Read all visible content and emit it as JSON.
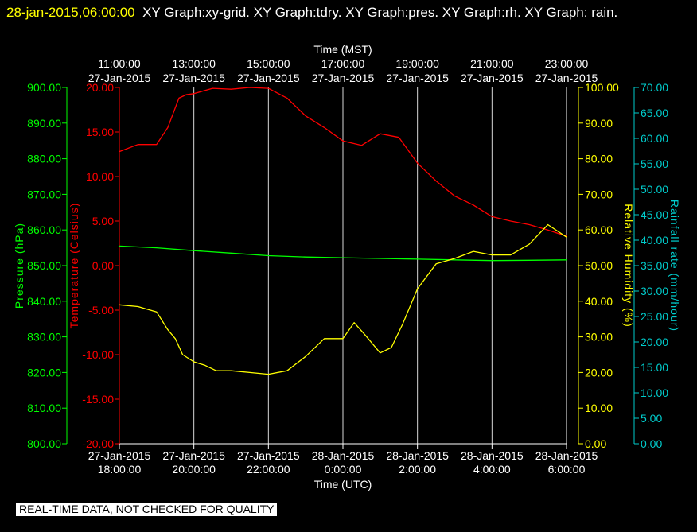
{
  "header": {
    "timestamp": "28-jan-2015,06:00:00",
    "graphs_text": "XY Graph:xy-grid.  XY Graph:tdry.  XY Graph:pres.  XY Graph:rh.  XY Graph: rain."
  },
  "notice": "REAL-TIME DATA, NOT CHECKED FOR QUALITY",
  "colors": {
    "pressure": "#00ff00",
    "temperature": "#ff0000",
    "humidity": "#ffff00",
    "rain": "#00cccc",
    "grid": "#ffffff",
    "notice_bg": "#ffffff"
  },
  "chart_data": {
    "type": "line",
    "title": "",
    "grid": true,
    "x_top": {
      "label": "Time (MST)",
      "ticks": [
        {
          "time": "11:00:00",
          "date": "27-Jan-2015"
        },
        {
          "time": "13:00:00",
          "date": "27-Jan-2015"
        },
        {
          "time": "15:00:00",
          "date": "27-Jan-2015"
        },
        {
          "time": "17:00:00",
          "date": "27-Jan-2015"
        },
        {
          "time": "19:00:00",
          "date": "27-Jan-2015"
        },
        {
          "time": "21:00:00",
          "date": "27-Jan-2015"
        },
        {
          "time": "23:00:00",
          "date": "27-Jan-2015"
        }
      ]
    },
    "x_bottom": {
      "label": "Time (UTC)",
      "range": [
        "27-Jan-2015 18:00:00",
        "28-Jan-2015 06:00:00"
      ],
      "ticks": [
        {
          "date": "27-Jan-2015",
          "time": "18:00:00"
        },
        {
          "date": "27-Jan-2015",
          "time": "20:00:00"
        },
        {
          "date": "27-Jan-2015",
          "time": "22:00:00"
        },
        {
          "date": "28-Jan-2015",
          "time": "0:00:00"
        },
        {
          "date": "28-Jan-2015",
          "time": "2:00:00"
        },
        {
          "date": "28-Jan-2015",
          "time": "4:00:00"
        },
        {
          "date": "28-Jan-2015",
          "time": "6:00:00"
        }
      ]
    },
    "axes": {
      "pressure": {
        "label": "Pressure (hPa)",
        "range": [
          800,
          900
        ],
        "ticks": [
          "800.00",
          "810.00",
          "820.00",
          "830.00",
          "840.00",
          "850.00",
          "860.00",
          "870.00",
          "880.00",
          "890.00",
          "900.00"
        ]
      },
      "temperature": {
        "label": "Temperature (Celsius)",
        "range": [
          -20,
          20
        ],
        "ticks": [
          "-20.00",
          "-15.00",
          "-10.00",
          "-5.00",
          "0.00",
          "5.00",
          "10.00",
          "15.00",
          "20.00"
        ]
      },
      "humidity": {
        "label": "Relative Humidity (%)",
        "range": [
          0,
          100
        ],
        "ticks": [
          "0.00",
          "10.00",
          "20.00",
          "30.00",
          "40.00",
          "50.00",
          "60.00",
          "70.00",
          "80.00",
          "90.00",
          "100.00"
        ]
      },
      "rain": {
        "label": "Rainfall rate (mm/hour)",
        "range": [
          0,
          70
        ],
        "ticks": [
          "0.00",
          "5.00",
          "10.00",
          "15.00",
          "20.00",
          "25.00",
          "30.00",
          "35.00",
          "40.00",
          "45.00",
          "50.00",
          "55.00",
          "60.00",
          "65.00",
          "70.00"
        ]
      }
    },
    "series": [
      {
        "key": "temperature",
        "axis": "temperature",
        "x": [
          0,
          0.5,
          1,
          1.3,
          1.6,
          1.8,
          2,
          2.5,
          3,
          3.5,
          4,
          4.5,
          5,
          5.5,
          6,
          6.5,
          7,
          7.5,
          8,
          8.5,
          9,
          9.5,
          10,
          10.5,
          11,
          11.5,
          12
        ],
        "y": [
          12.8,
          13.6,
          13.6,
          15.5,
          18.8,
          19.2,
          19.3,
          19.9,
          19.8,
          20.0,
          19.9,
          18.8,
          16.8,
          15.5,
          14.0,
          13.5,
          14.8,
          14.4,
          11.5,
          9.5,
          7.8,
          6.8,
          5.5,
          5.0,
          4.6,
          4.0,
          3.3
        ]
      },
      {
        "key": "pressure",
        "axis": "pressure",
        "x": [
          0,
          1,
          2,
          3,
          4,
          5,
          6,
          7,
          8,
          9,
          10,
          11,
          12
        ],
        "y": [
          855.5,
          855.0,
          854.2,
          853.5,
          852.8,
          852.4,
          852.2,
          852.0,
          851.8,
          851.6,
          851.4,
          851.5,
          851.6
        ]
      },
      {
        "key": "humidity",
        "axis": "humidity",
        "x": [
          0,
          0.5,
          1,
          1.3,
          1.5,
          1.7,
          2,
          2.3,
          2.6,
          3,
          3.5,
          4,
          4.5,
          5,
          5.5,
          6,
          6.3,
          6.6,
          7,
          7.3,
          7.6,
          8,
          8.5,
          9,
          9.5,
          10,
          10.5,
          11,
          11.5,
          12
        ],
        "y": [
          39.0,
          38.5,
          37.0,
          32.0,
          29.5,
          25.0,
          23.0,
          22.0,
          20.5,
          20.5,
          20.0,
          19.5,
          20.5,
          24.5,
          29.5,
          29.5,
          34.0,
          30.5,
          25.5,
          27.0,
          33.5,
          43.5,
          50.5,
          52.0,
          54.0,
          53.0,
          53.0,
          56.0,
          61.5,
          58.0
        ]
      },
      {
        "key": "rain",
        "axis": "rain",
        "x": [],
        "y": []
      }
    ]
  }
}
